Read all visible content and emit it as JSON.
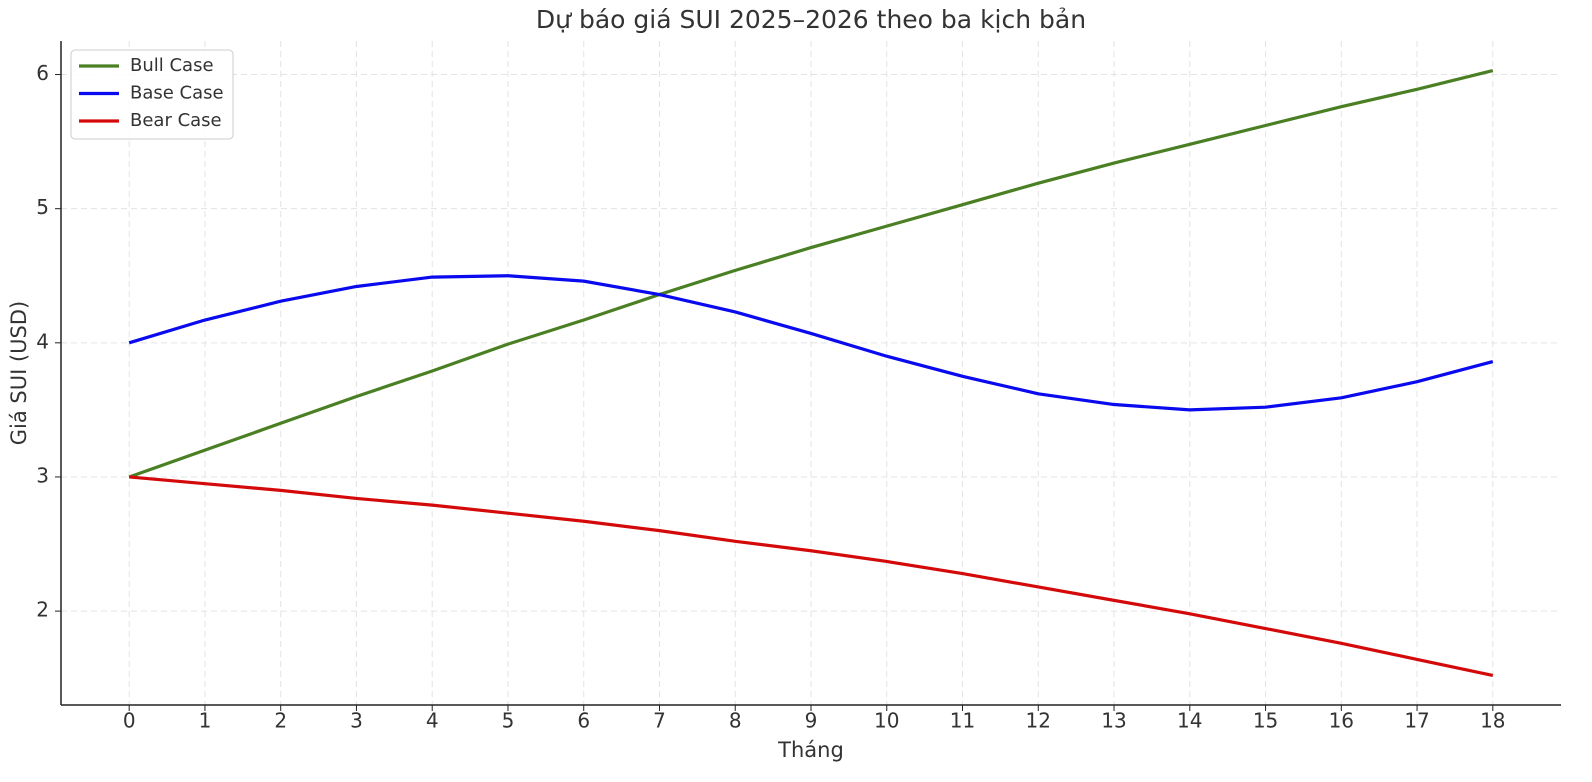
{
  "chart_data": {
    "type": "line",
    "title": "Dự báo giá SUI 2025–2026 theo ba kịch bản",
    "x_label": "Tháng",
    "y_label": "Giá SUI (USD)",
    "x": [
      0,
      1,
      2,
      3,
      4,
      5,
      6,
      7,
      8,
      9,
      10,
      11,
      12,
      13,
      14,
      15,
      16,
      17,
      18
    ],
    "series": [
      {
        "name": "Bull Case",
        "color": "#4a7f23",
        "values": [
          3.0,
          3.2,
          3.4,
          3.6,
          3.79,
          3.99,
          4.17,
          4.36,
          4.54,
          4.71,
          4.87,
          5.03,
          5.19,
          5.34,
          5.48,
          5.62,
          5.76,
          5.89,
          6.03
        ]
      },
      {
        "name": "Base Case",
        "color": "#0a0aee",
        "values": [
          4.0,
          4.17,
          4.31,
          4.42,
          4.49,
          4.5,
          4.46,
          4.36,
          4.23,
          4.07,
          3.9,
          3.75,
          3.62,
          3.54,
          3.5,
          3.52,
          3.59,
          3.71,
          3.86
        ]
      },
      {
        "name": "Bear Case",
        "color": "#d40a0a",
        "values": [
          3.0,
          2.95,
          2.9,
          2.84,
          2.79,
          2.73,
          2.67,
          2.6,
          2.52,
          2.45,
          2.37,
          2.28,
          2.18,
          2.08,
          1.98,
          1.87,
          1.76,
          1.64,
          1.52
        ]
      }
    ],
    "xlim": [
      -0.9,
      18.9
    ],
    "ylim": [
      1.3,
      6.25
    ],
    "xticks": [
      0,
      1,
      2,
      3,
      4,
      5,
      6,
      7,
      8,
      9,
      10,
      11,
      12,
      13,
      14,
      15,
      16,
      17,
      18
    ],
    "yticks": [
      2,
      3,
      4,
      5,
      6
    ],
    "grid": true,
    "legend": "upper-left"
  }
}
